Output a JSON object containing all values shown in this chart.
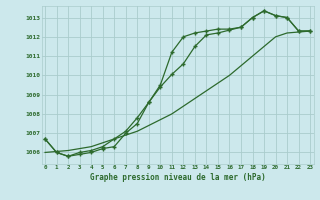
{
  "x": [
    0,
    1,
    2,
    3,
    4,
    5,
    6,
    7,
    8,
    9,
    10,
    11,
    12,
    13,
    14,
    15,
    16,
    17,
    18,
    19,
    20,
    21,
    22,
    23
  ],
  "line1": [
    1006.7,
    1006.0,
    1005.8,
    1005.9,
    1006.0,
    1006.2,
    1006.3,
    1007.0,
    1007.5,
    1008.6,
    1009.5,
    1011.2,
    1012.0,
    1012.2,
    1012.3,
    1012.4,
    1012.4,
    1012.5,
    1013.0,
    1013.35,
    1013.1,
    1013.0,
    1012.3,
    1012.3
  ],
  "line2": [
    1006.7,
    1006.0,
    1005.8,
    1006.0,
    1006.1,
    1006.3,
    1006.7,
    1007.1,
    1007.8,
    1008.6,
    1009.4,
    1010.05,
    1010.6,
    1011.5,
    1012.1,
    1012.2,
    1012.35,
    1012.5,
    1013.0,
    1013.35,
    1013.1,
    1013.0,
    1012.3,
    1012.3
  ],
  "line3": [
    1006.0,
    1006.05,
    1006.1,
    1006.2,
    1006.3,
    1006.5,
    1006.7,
    1006.9,
    1007.1,
    1007.4,
    1007.7,
    1008.0,
    1008.4,
    1008.8,
    1009.2,
    1009.6,
    1010.0,
    1010.5,
    1011.0,
    1011.5,
    1012.0,
    1012.2,
    1012.25,
    1012.3
  ],
  "line_color": "#2d6a2d",
  "marker": "+",
  "marker_size": 3.5,
  "background_color": "#cce8ec",
  "grid_color": "#aacccc",
  "text_color": "#2d6a2d",
  "xlabel": "Graphe pression niveau de la mer (hPa)",
  "ylim": [
    1005.4,
    1013.6
  ],
  "yticks": [
    1006,
    1007,
    1008,
    1009,
    1010,
    1011,
    1012,
    1013
  ],
  "xticks": [
    0,
    1,
    2,
    3,
    4,
    5,
    6,
    7,
    8,
    9,
    10,
    11,
    12,
    13,
    14,
    15,
    16,
    17,
    18,
    19,
    20,
    21,
    22,
    23
  ],
  "xlim": [
    -0.3,
    23.3
  ]
}
